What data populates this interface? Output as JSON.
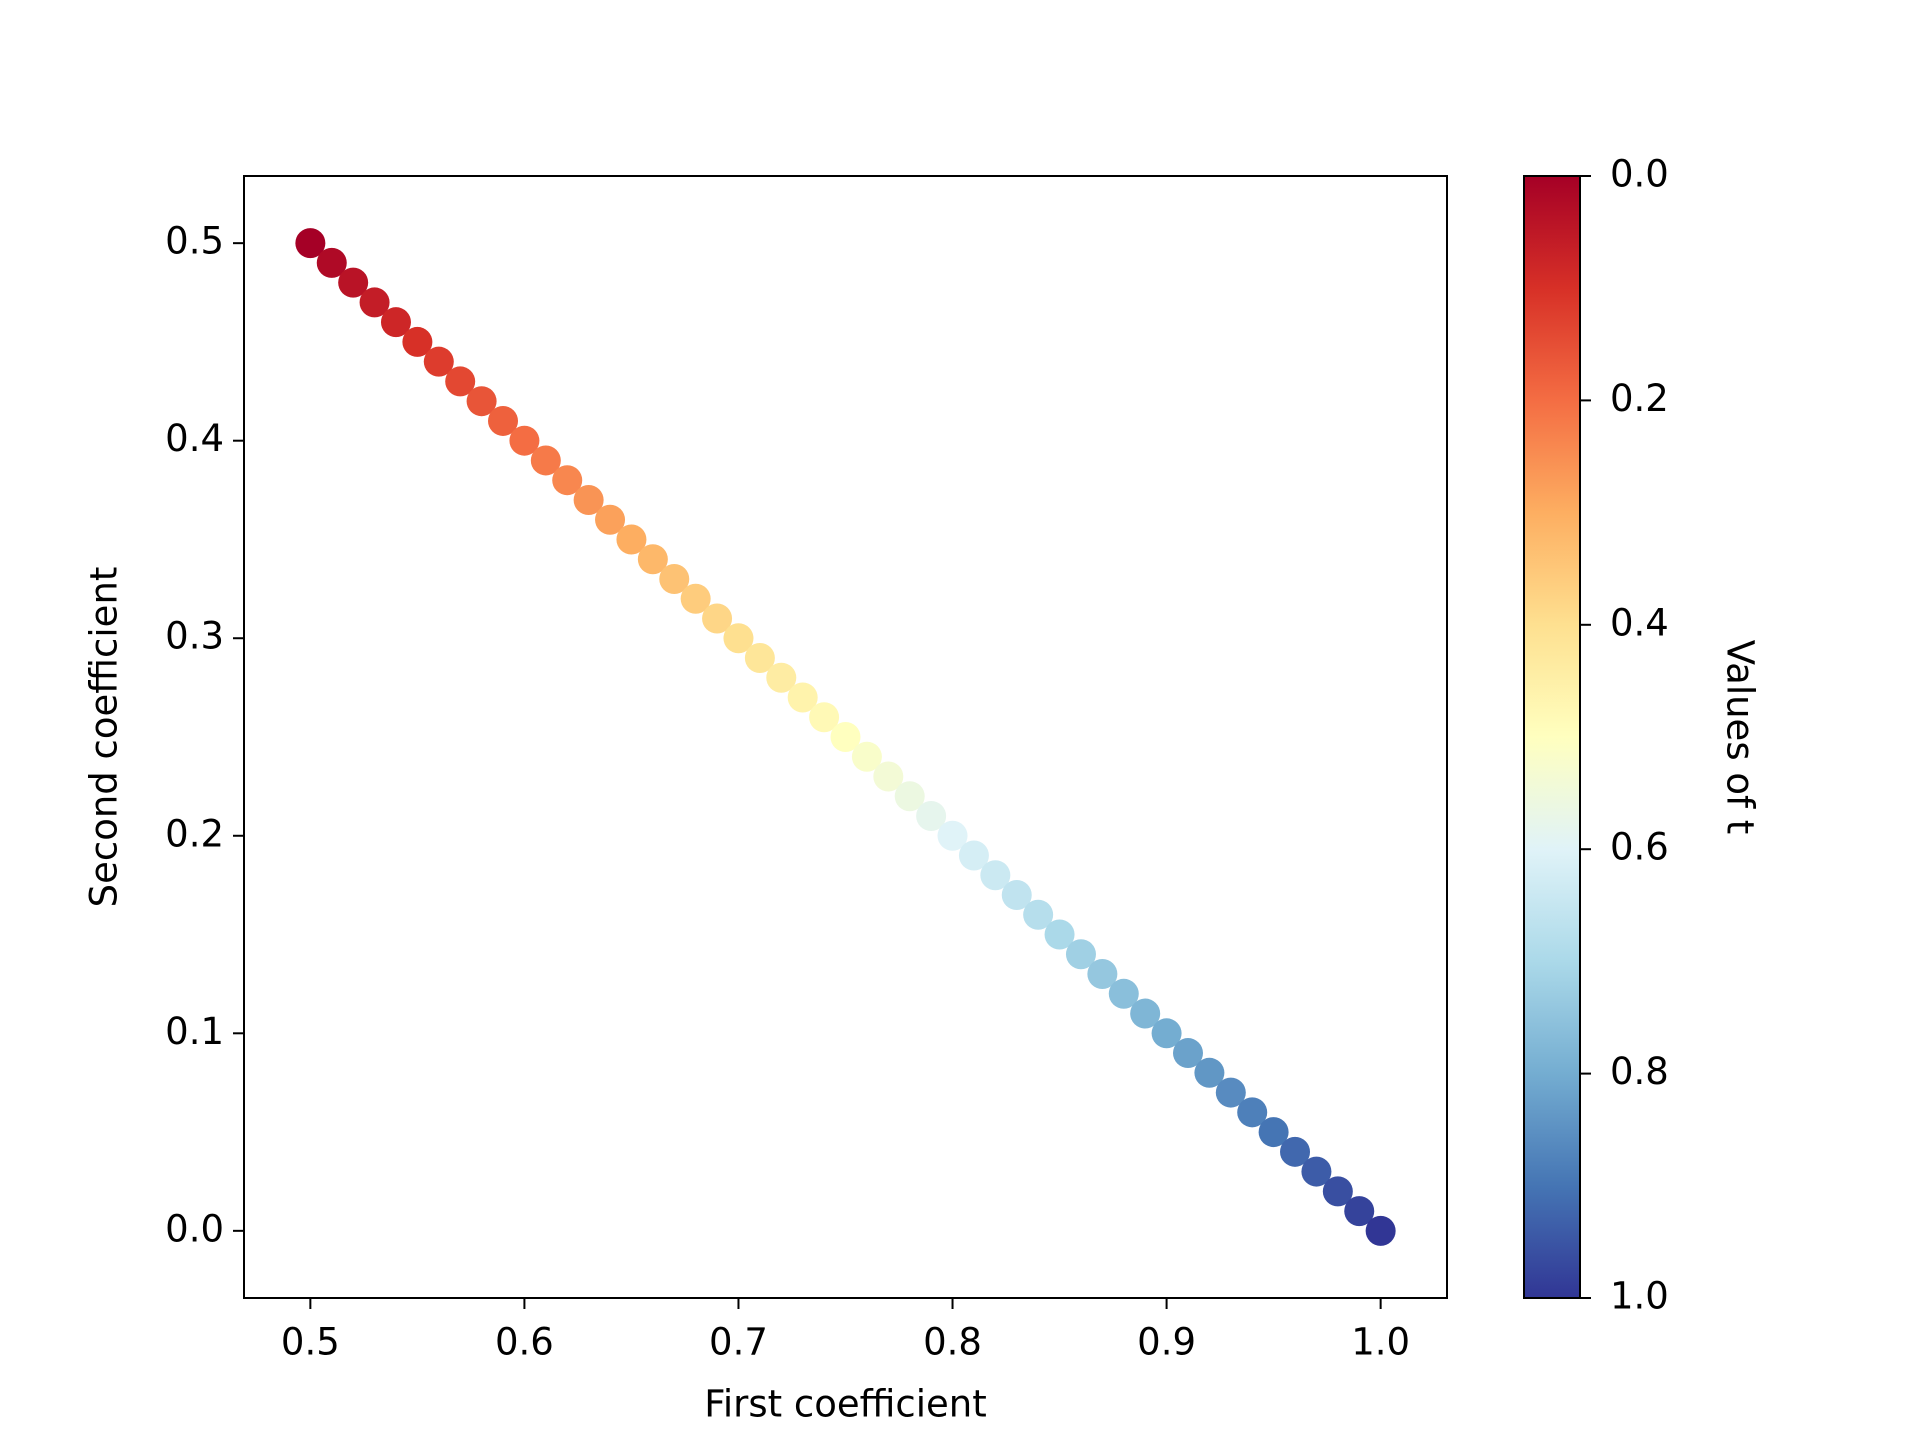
{
  "chart_data": {
    "type": "scatter",
    "xlabel": "First coefficient",
    "ylabel": "Second coefficient",
    "x": [
      0.5,
      0.51,
      0.52,
      0.53,
      0.54,
      0.55,
      0.56,
      0.57,
      0.58,
      0.59,
      0.6,
      0.61,
      0.62,
      0.63,
      0.64,
      0.65,
      0.66,
      0.67,
      0.68,
      0.69,
      0.7,
      0.71,
      0.72,
      0.73,
      0.74,
      0.75,
      0.76,
      0.77,
      0.78,
      0.79,
      0.8,
      0.81,
      0.82,
      0.83,
      0.84,
      0.85,
      0.86,
      0.87,
      0.88,
      0.89,
      0.9,
      0.91,
      0.92,
      0.93,
      0.94,
      0.95,
      0.96,
      0.97,
      0.98,
      0.99,
      1.0
    ],
    "y": [
      0.5,
      0.49,
      0.48,
      0.47,
      0.46,
      0.45,
      0.44,
      0.43,
      0.42,
      0.41,
      0.4,
      0.39,
      0.38,
      0.37,
      0.36,
      0.35,
      0.34,
      0.33,
      0.32,
      0.31,
      0.3,
      0.29,
      0.28,
      0.27,
      0.26,
      0.25,
      0.24,
      0.23,
      0.22,
      0.21,
      0.2,
      0.19,
      0.18,
      0.17,
      0.16,
      0.15,
      0.14,
      0.13,
      0.12,
      0.11,
      0.1,
      0.09,
      0.08,
      0.07,
      0.06,
      0.05,
      0.04,
      0.03,
      0.02,
      0.01,
      0.0
    ],
    "t": [
      0,
      0.02,
      0.04,
      0.06,
      0.08,
      0.1,
      0.12,
      0.14,
      0.16,
      0.18,
      0.2,
      0.22,
      0.24,
      0.26,
      0.28,
      0.3,
      0.32,
      0.34,
      0.36,
      0.38,
      0.4,
      0.42,
      0.44,
      0.46,
      0.48,
      0.5,
      0.52,
      0.54,
      0.56,
      0.58,
      0.6,
      0.62,
      0.64,
      0.66,
      0.68,
      0.7,
      0.72,
      0.74,
      0.76,
      0.78,
      0.8,
      0.82,
      0.84,
      0.86,
      0.88,
      0.9,
      0.92,
      0.94,
      0.96,
      0.98,
      1.0
    ],
    "xlim": [
      0.469,
      1.031
    ],
    "xticks": [
      0.5,
      0.6,
      0.7,
      0.8,
      0.9,
      {
        "value": 1,
        "label": "1.0"
      }
    ],
    "ylim": [
      -0.034,
      0.534
    ],
    "yticks": [
      {
        "value": 0,
        "label": "0.0"
      },
      0.1,
      0.2,
      0.3,
      0.4,
      0.5
    ],
    "colorbar": {
      "label": "Values of t",
      "lim": [
        0,
        1
      ],
      "ticks": [
        {
          "value": 0,
          "label": "0.0"
        },
        0.2,
        0.4,
        0.6,
        0.8,
        {
          "value": 1,
          "label": "1.0"
        }
      ],
      "colormap": [
        "#a50026",
        "#d73027",
        "#f46d43",
        "#fdae61",
        "#fee090",
        "#ffffbf",
        "#e0f3f8",
        "#abd9e9",
        "#74add1",
        "#4575b4",
        "#313695"
      ]
    }
  }
}
